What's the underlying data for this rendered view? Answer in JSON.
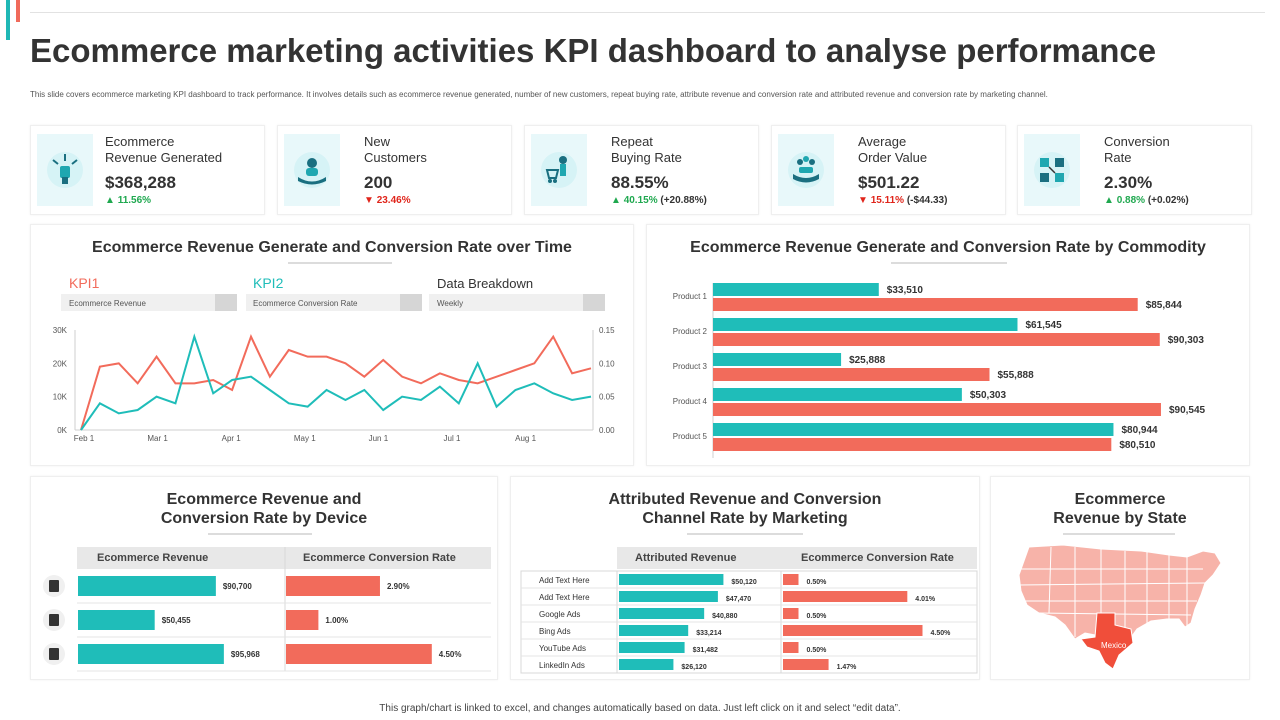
{
  "header": {
    "title": "Ecommerce marketing activities KPI dashboard to analyse performance",
    "subtitle": "This slide covers ecommerce marketing KPI dashboard to track performance. It involves details such as ecommerce revenue generated, number of new customers, repeat buying rate, attribute revenue and conversion rate and attributed revenue and conversion rate by marketing channel."
  },
  "kpis": [
    {
      "label": "Ecommerce\nRevenue  Generated",
      "value": "$368,288",
      "change": "11.56%",
      "direction": "up",
      "extra": "",
      "icon": "raised-fist-icon"
    },
    {
      "label": "New\nCustomers",
      "value": "200",
      "change": "23.46%",
      "direction": "down",
      "extra": "",
      "icon": "customer-hand-icon"
    },
    {
      "label": "Repeat\nBuying Rate",
      "value": "88.55%",
      "change": "40.15%",
      "direction": "up",
      "extra": "(+20.88%)",
      "icon": "shopping-cart-person-icon"
    },
    {
      "label": "Average\nOrder Value",
      "value": "$501.22",
      "change": "15.11%",
      "direction": "down",
      "extra": "(-$44.33)",
      "icon": "hand-people-icon"
    },
    {
      "label": "Conversion\nRate",
      "value": "2.30%",
      "change": "0.88%",
      "direction": "up",
      "extra": "(+0.02%)",
      "icon": "conversion-icon"
    }
  ],
  "panels": {
    "time": {
      "title": "Ecommerce Revenue Generate and Conversion Rate over Time",
      "kpi1_label": "KPI1",
      "kpi1_select": "Ecommerce Revenue",
      "kpi2_label": "KPI2",
      "kpi2_select": "Ecommerce Conversion Rate",
      "breakdown_label": "Data Breakdown",
      "breakdown_select": "Weekly"
    },
    "commodity": {
      "title": "Ecommerce Revenue Generate and Conversion Rate by Commodity"
    },
    "device": {
      "title": "Ecommerce Revenue and\nConversion Rate by Device"
    },
    "marketing": {
      "title": "Attributed Revenue and Conversion\nChannel Rate by Marketing"
    },
    "state": {
      "title": "Ecommerce\nRevenue by State",
      "highlight_label": "Mexico"
    }
  },
  "colors": {
    "teal": "#1fbdb9",
    "coral": "#f26b5b",
    "text": "#333333"
  },
  "chart_data": [
    {
      "id": "time",
      "type": "line",
      "x_tick_labels": [
        "Feb 1",
        "Mar 1",
        "Apr 1",
        "May 1",
        "Jun 1",
        "Jul 1",
        "Aug 1"
      ],
      "y_left_ticks": [
        "30K",
        "20K",
        "10K",
        "0K"
      ],
      "y_right_ticks": [
        "0.15",
        "0.10",
        "0.05",
        "0.00"
      ],
      "ylim_left": [
        0,
        30000
      ],
      "ylim_right": [
        0,
        0.15
      ],
      "series": [
        {
          "key": "coral",
          "axis": "left",
          "values": [
            0,
            19000,
            20000,
            14000,
            22000,
            14000,
            14000,
            15000,
            12000,
            28000,
            16000,
            24000,
            22000,
            22000,
            20000,
            16000,
            21000,
            16000,
            14000,
            17000,
            15000,
            14000,
            16000,
            18000,
            20000,
            28000,
            17000,
            18500
          ]
        },
        {
          "key": "teal",
          "axis": "right",
          "values": [
            0.0,
            0.04,
            0.025,
            0.03,
            0.05,
            0.04,
            0.14,
            0.055,
            0.075,
            0.08,
            0.06,
            0.04,
            0.035,
            0.06,
            0.045,
            0.06,
            0.03,
            0.05,
            0.045,
            0.065,
            0.04,
            0.1,
            0.035,
            0.06,
            0.07,
            0.055,
            0.045,
            0.05
          ]
        }
      ]
    },
    {
      "id": "commodity",
      "type": "bar",
      "categories": [
        "Product 1",
        "Product 2",
        "Product 3",
        "Product 4",
        "Product 5"
      ],
      "series": [
        {
          "key": "teal",
          "values": [
            33510,
            61545,
            25888,
            50303,
            80944
          ],
          "labels": [
            "$33,510",
            "$61,545",
            "$25,888",
            "$50,303",
            "$80,944"
          ]
        },
        {
          "key": "coral",
          "values": [
            85844,
            90303,
            55888,
            90545,
            80510
          ],
          "labels": [
            "$85,844",
            "$90,303",
            "$55,888",
            "$90,545",
            "$80,510"
          ]
        }
      ]
    },
    {
      "id": "device",
      "type": "table",
      "headers": [
        "Ecommerce Revenue",
        "Ecommerce Conversion Rate"
      ],
      "rows": [
        {
          "icon": "mobile-phone-icon",
          "revenue": 90700,
          "revenue_label": "$90,700",
          "rate": 2.9,
          "rate_label": "2.90%"
        },
        {
          "icon": "desktop-monitor-icon",
          "revenue": 50455,
          "revenue_label": "$50,455",
          "rate": 1.0,
          "rate_label": "1.00%"
        },
        {
          "icon": "router-device-icon",
          "revenue": 95968,
          "revenue_label": "$95,968",
          "rate": 4.5,
          "rate_label": "4.50%"
        }
      ]
    },
    {
      "id": "marketing",
      "type": "table",
      "headers": [
        "Attributed Revenue",
        "Ecommerce Conversion Rate"
      ],
      "rows": [
        {
          "channel": "Add Text Here",
          "revenue": 50120,
          "revenue_label": "$50,120",
          "rate": 0.5,
          "rate_label": "0.50%"
        },
        {
          "channel": "Add Text Here",
          "revenue": 47470,
          "revenue_label": "$47,470",
          "rate": 4.01,
          "rate_label": "4.01%"
        },
        {
          "channel": "Google  Ads",
          "revenue": 40880,
          "revenue_label": "$40,880",
          "rate": 0.5,
          "rate_label": "0.50%"
        },
        {
          "channel": "Bing Ads",
          "revenue": 33214,
          "revenue_label": "$33,214",
          "rate": 4.5,
          "rate_label": "4.50%"
        },
        {
          "channel": "YouTube  Ads",
          "revenue": 31482,
          "revenue_label": "$31,482",
          "rate": 0.5,
          "rate_label": "0.50%"
        },
        {
          "channel": "LinkedIn  Ads",
          "revenue": 26120,
          "revenue_label": "$26,120",
          "rate": 1.47,
          "rate_label": "1.47%"
        }
      ]
    }
  ],
  "footer": "This graph/chart is linked to excel, and changes automatically based on data. Just left click on it and select “edit data”."
}
